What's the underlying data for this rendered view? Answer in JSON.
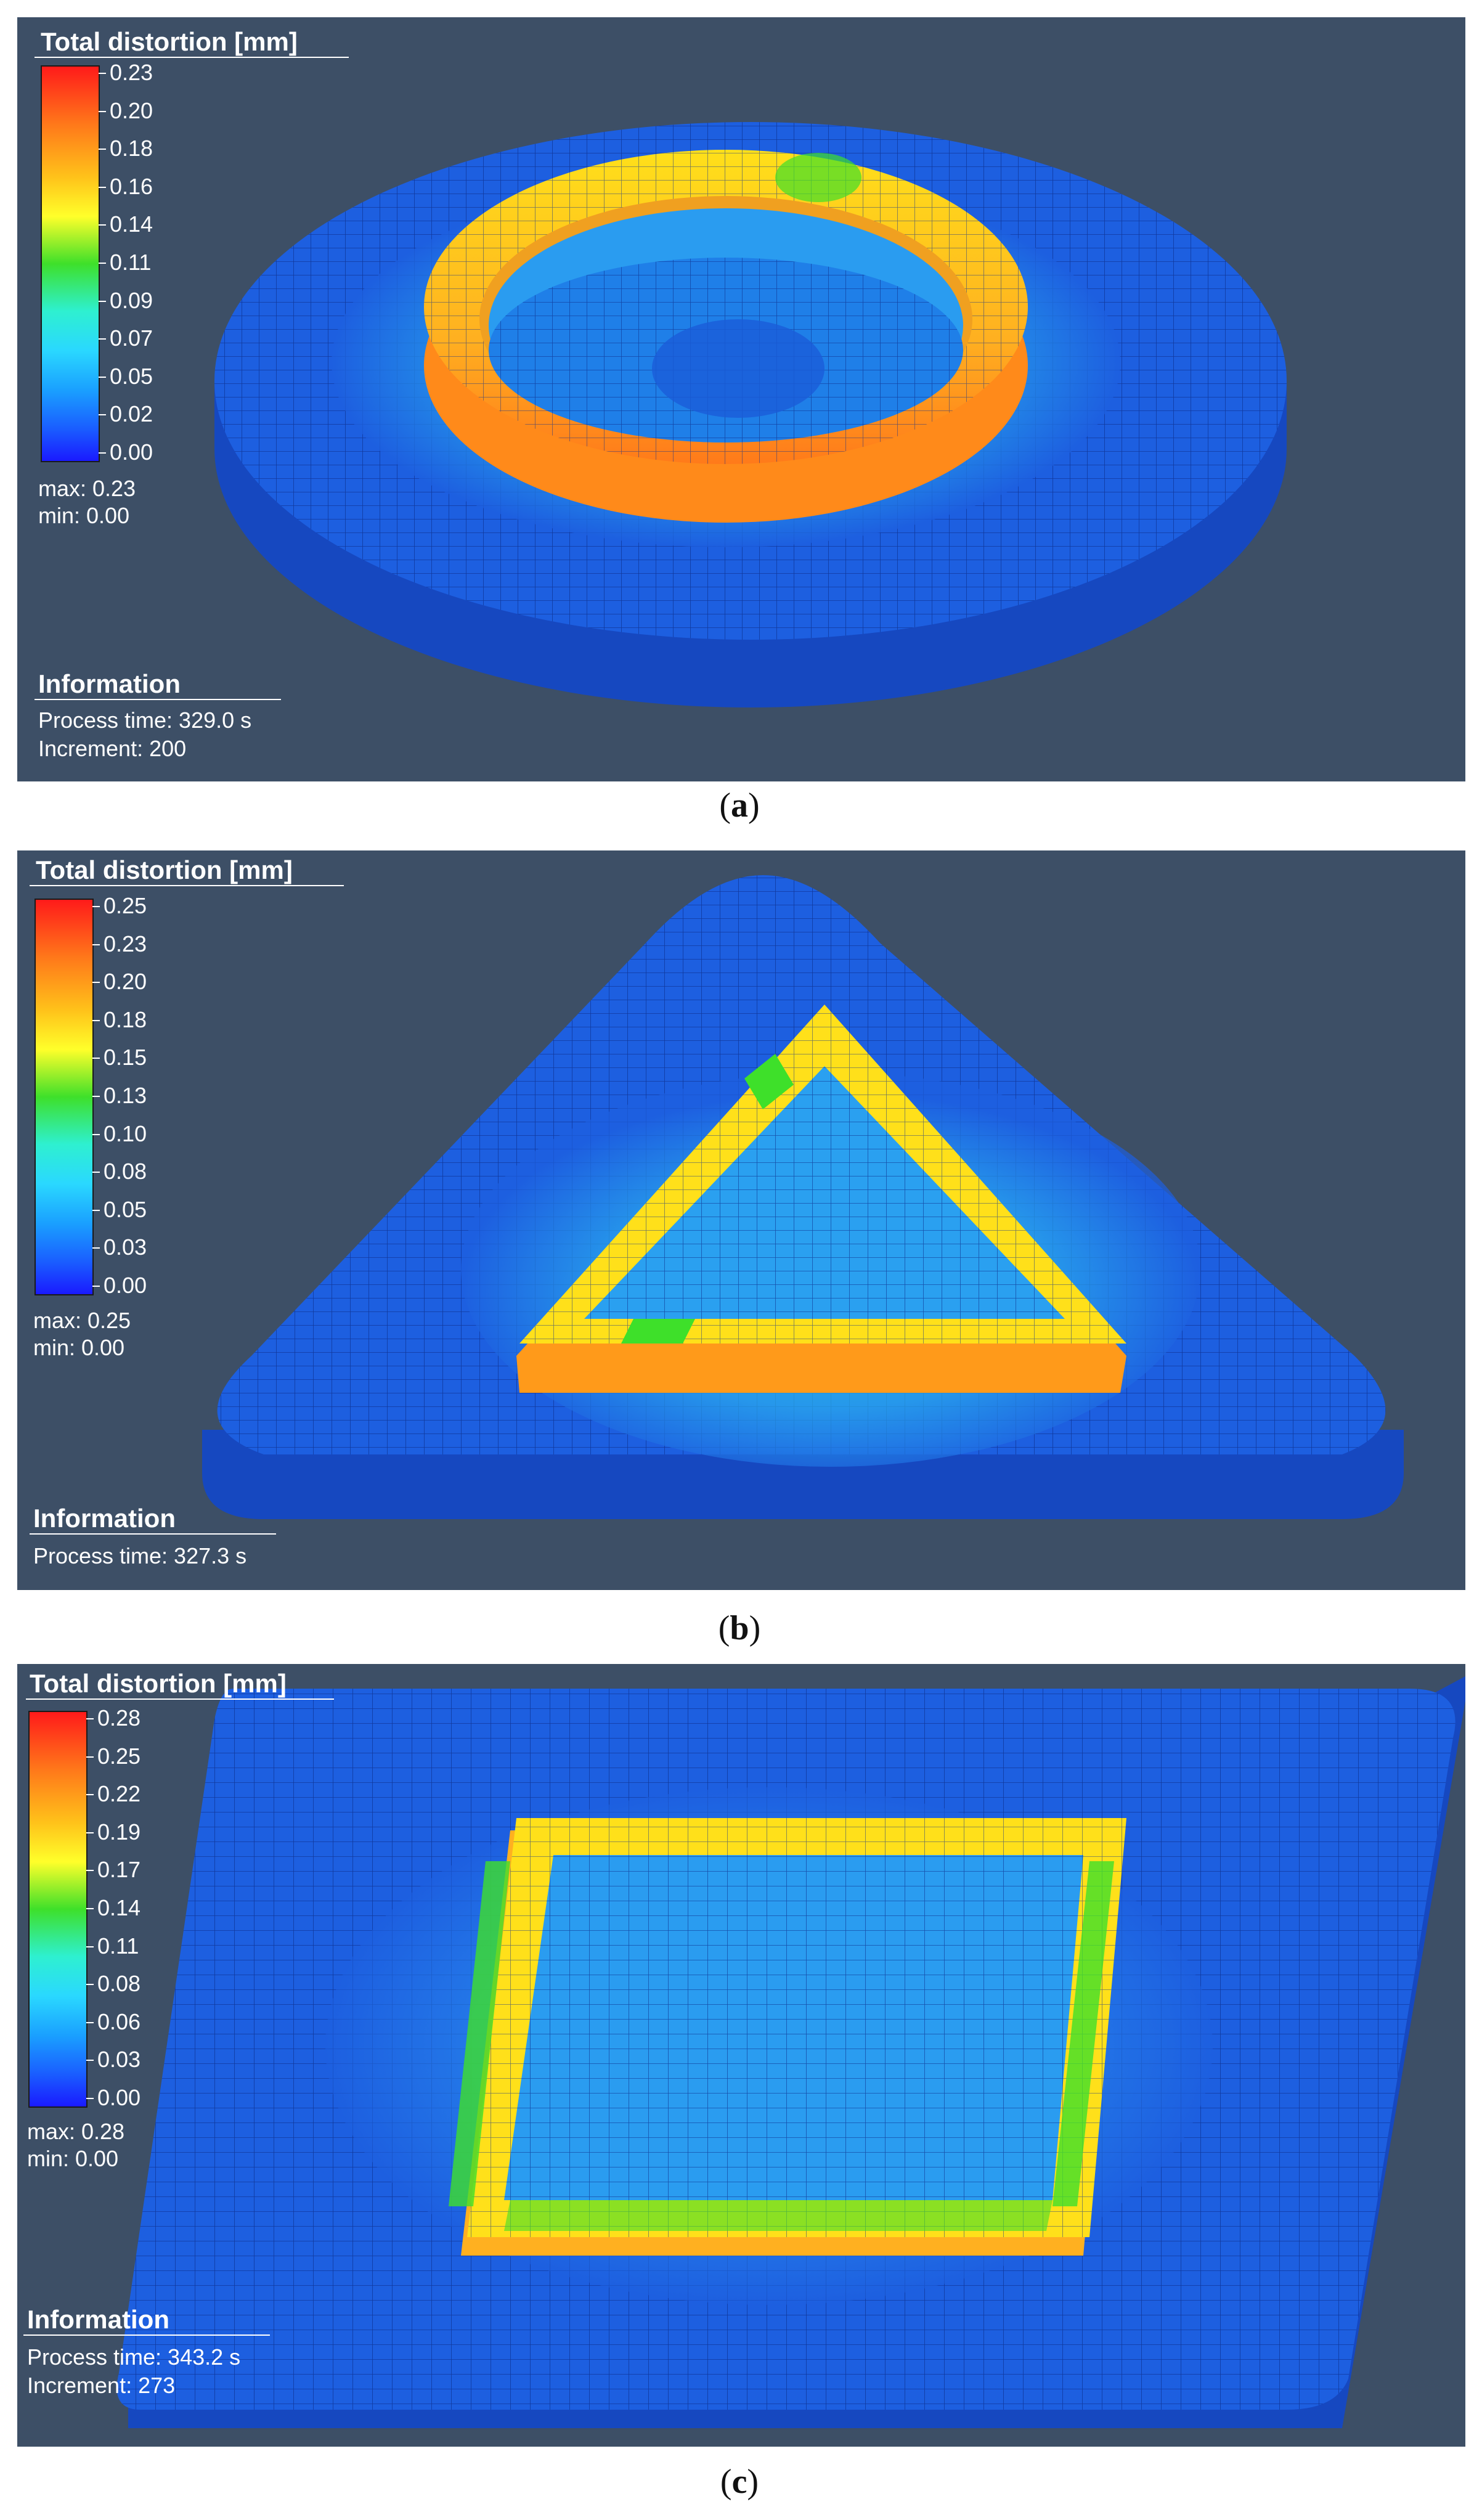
{
  "panels": [
    {
      "id": "a",
      "legend": {
        "title": "Total distortion [mm]",
        "ticks": [
          "0.23",
          "0.20",
          "0.18",
          "0.16",
          "0.14",
          "0.11",
          "0.09",
          "0.07",
          "0.05",
          "0.02",
          "0.00"
        ],
        "max": "max: 0.23",
        "min": "min:  0.00"
      },
      "info": {
        "title": "Information",
        "lines": [
          "Process time: 329.0 s",
          "Increment: 200"
        ]
      },
      "caption_letter": "a",
      "shape": "circle"
    },
    {
      "id": "b",
      "legend": {
        "title": "Total distortion [mm]",
        "ticks": [
          "0.25",
          "0.23",
          "0.20",
          "0.18",
          "0.15",
          "0.13",
          "0.10",
          "0.08",
          "0.05",
          "0.03",
          "0.00"
        ],
        "max": "max: 0.25",
        "min": "min:  0.00"
      },
      "info": {
        "title": "Information",
        "lines": [
          "Process time: 327.3 s"
        ]
      },
      "caption_letter": "b",
      "shape": "triangle"
    },
    {
      "id": "c",
      "legend": {
        "title": "Total distortion [mm]",
        "ticks": [
          "0.28",
          "0.25",
          "0.22",
          "0.19",
          "0.17",
          "0.14",
          "0.11",
          "0.08",
          "0.06",
          "0.03",
          "0.00"
        ],
        "max": "max: 0.28",
        "min": "min:  0.00"
      },
      "info": {
        "title": "Information",
        "lines": [
          "Process time: 343.2 s",
          "Increment: 273"
        ]
      },
      "caption_letter": "c",
      "shape": "square"
    }
  ],
  "colors": {
    "background": "#3d4f66",
    "mesh_base": "#1d5fe0",
    "mesh_edge": "#0f3aa8",
    "scale": [
      "#ff2a1a",
      "#ff7a1a",
      "#ffc21a",
      "#ffff2a",
      "#3ee02a",
      "#2ef0c8",
      "#2ad8ff",
      "#1aa0ff",
      "#1a5cff",
      "#1a1aff"
    ]
  }
}
